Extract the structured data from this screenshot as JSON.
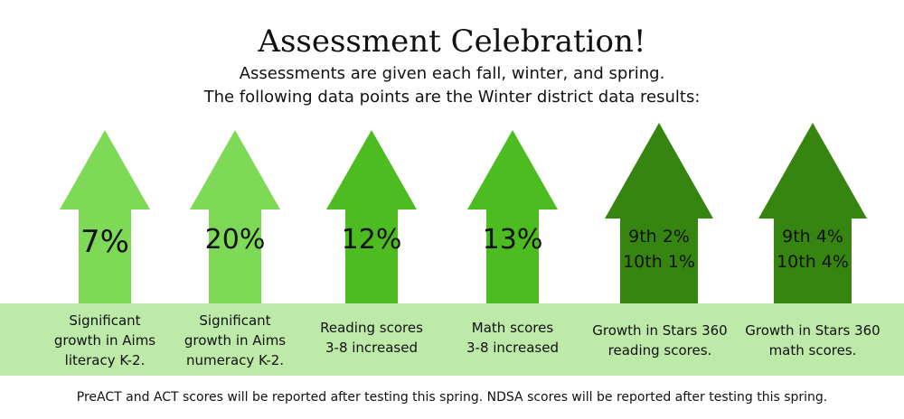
{
  "title": "Assessment Celebration!",
  "subtitle_lines": [
    "Assessments are given each fall, winter, and spring.",
    "The following data points are the Winter district data results:"
  ],
  "items": [
    {
      "value_lines": [
        "7%"
      ],
      "caption_lines": [
        "Significant",
        "growth in Aims",
        "literacy K-2."
      ],
      "color": "#7ed957"
    },
    {
      "value_lines": [
        "20%"
      ],
      "caption_lines": [
        "Significant",
        "growth in Aims",
        "numeracy K-2."
      ],
      "color": "#7ed957"
    },
    {
      "value_lines": [
        "12%"
      ],
      "caption_lines": [
        "Reading scores",
        "3-8 increased"
      ],
      "color": "#4cbc20"
    },
    {
      "value_lines": [
        "13%"
      ],
      "caption_lines": [
        "Math scores",
        "3-8 increased"
      ],
      "color": "#4cbc20"
    },
    {
      "value_lines": [
        "9th 2%",
        "10th 1%"
      ],
      "caption_lines": [
        "Growth in Stars 360",
        "reading scores."
      ],
      "color": "#368510"
    },
    {
      "value_lines": [
        "9th 4%",
        "10th 4%"
      ],
      "caption_lines": [
        "Growth in Stars 360",
        "math scores."
      ],
      "color": "#368510"
    }
  ],
  "footer": "PreACT and ACT scores will be reported after testing this spring. NDSA scores will be reported after testing this spring."
}
